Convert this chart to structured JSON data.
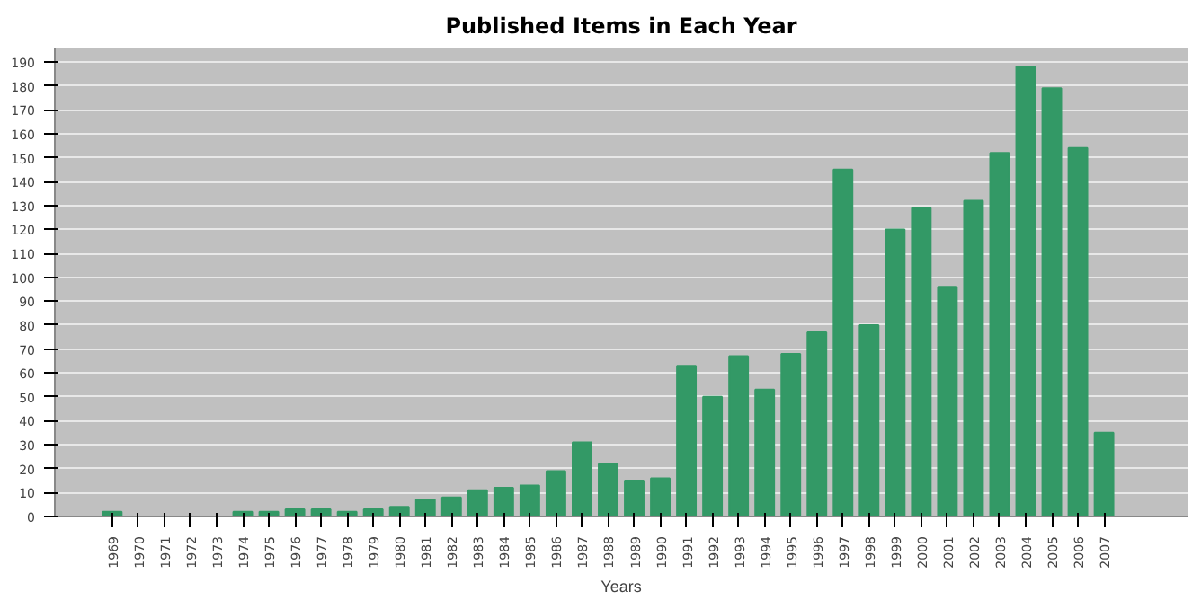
{
  "chart_data": {
    "type": "bar",
    "title": "Published Items in Each Year",
    "xlabel": "Years",
    "categories": [
      "1969",
      "1970",
      "1971",
      "1972",
      "1973",
      "1974",
      "1975",
      "1976",
      "1977",
      "1978",
      "1979",
      "1980",
      "1981",
      "1982",
      "1983",
      "1984",
      "1985",
      "1986",
      "1987",
      "1988",
      "1989",
      "1990",
      "1991",
      "1992",
      "1993",
      "1994",
      "1995",
      "1996",
      "1997",
      "1998",
      "1999",
      "2000",
      "2001",
      "2002",
      "2003",
      "2004",
      "2005",
      "2006",
      "2007"
    ],
    "values": [
      2,
      0,
      0,
      0,
      0,
      2,
      2,
      3,
      3,
      2,
      3,
      4,
      7,
      8,
      11,
      12,
      13,
      19,
      31,
      22,
      15,
      16,
      63,
      50,
      67,
      53,
      68,
      77,
      145,
      80,
      120,
      129,
      96,
      132,
      152,
      188,
      179,
      154,
      35
    ],
    "color": "#339966",
    "ylim": [
      0,
      196
    ],
    "yticks": [
      0,
      10,
      20,
      30,
      40,
      50,
      60,
      70,
      80,
      90,
      100,
      110,
      120,
      130,
      140,
      150,
      160,
      170,
      180,
      190
    ],
    "grid": "y"
  }
}
